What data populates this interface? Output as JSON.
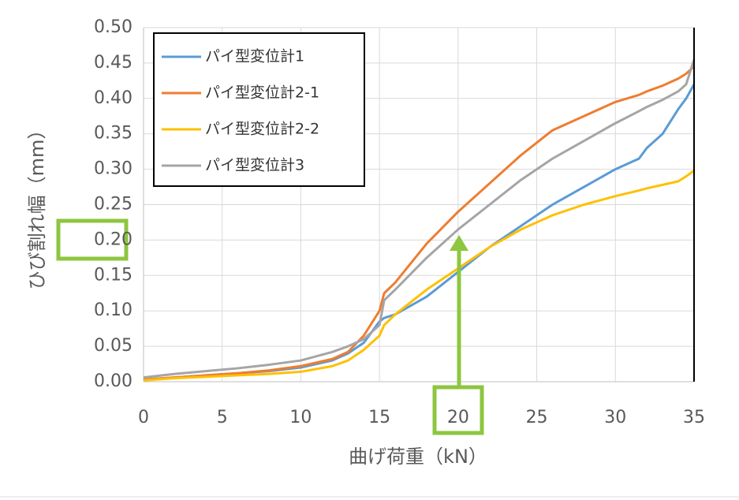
{
  "chart_data": {
    "type": "line",
    "x_label": "曲げ荷重（kN）",
    "y_label": "ひび割れ幅（mm）",
    "x": [
      0,
      2,
      4,
      6,
      8,
      10,
      12,
      13,
      14,
      15,
      15.3,
      16,
      18,
      20,
      22,
      24,
      26,
      28,
      30,
      31.5,
      32,
      33,
      34,
      34.5,
      35
    ],
    "series": [
      {
        "name": "パイ型変位計1",
        "color": "#5b9bd5",
        "values": [
          0.003,
          0.006,
          0.009,
          0.012,
          0.015,
          0.02,
          0.03,
          0.04,
          0.055,
          0.085,
          0.09,
          0.095,
          0.12,
          0.155,
          0.19,
          0.22,
          0.25,
          0.275,
          0.3,
          0.315,
          0.33,
          0.35,
          0.385,
          0.4,
          0.42
        ]
      },
      {
        "name": "パイ型変位計2-1",
        "color": "#ed7d31",
        "values": [
          0.003,
          0.006,
          0.009,
          0.012,
          0.016,
          0.022,
          0.032,
          0.042,
          0.065,
          0.1,
          0.125,
          0.14,
          0.195,
          0.24,
          0.28,
          0.32,
          0.355,
          0.375,
          0.395,
          0.405,
          0.41,
          0.418,
          0.428,
          0.435,
          0.445
        ]
      },
      {
        "name": "パイ型変位計2-2",
        "color": "#ffc000",
        "values": [
          0.002,
          0.005,
          0.007,
          0.009,
          0.011,
          0.014,
          0.022,
          0.03,
          0.045,
          0.065,
          0.08,
          0.095,
          0.13,
          0.16,
          0.19,
          0.215,
          0.235,
          0.25,
          0.262,
          0.27,
          0.273,
          0.278,
          0.283,
          0.29,
          0.298
        ]
      },
      {
        "name": "パイ型変位計3",
        "color": "#a5a5a5",
        "values": [
          0.006,
          0.011,
          0.015,
          0.019,
          0.024,
          0.03,
          0.042,
          0.05,
          0.06,
          0.08,
          0.115,
          0.13,
          0.175,
          0.215,
          0.25,
          0.285,
          0.315,
          0.34,
          0.365,
          0.382,
          0.388,
          0.398,
          0.41,
          0.42,
          0.455
        ]
      }
    ],
    "xlim": [
      0,
      35
    ],
    "xticks": [
      0,
      5,
      10,
      15,
      20,
      25,
      30,
      35
    ],
    "ylim": [
      0,
      0.5
    ],
    "yticks": [
      {
        "value": 0,
        "label": "0.00"
      },
      {
        "value": 0.05,
        "label": "0.05"
      },
      {
        "value": 0.1,
        "label": "0.10"
      },
      {
        "value": 0.15,
        "label": "0.15"
      },
      {
        "value": 0.2,
        "label": "0.20"
      },
      {
        "value": 0.25,
        "label": "0.25"
      },
      {
        "value": 0.3,
        "label": "0.30"
      },
      {
        "value": 0.35,
        "label": "0.35"
      },
      {
        "value": 0.4,
        "label": "0.40"
      },
      {
        "value": 0.45,
        "label": "0.45"
      },
      {
        "value": 0.5,
        "label": "0.50"
      }
    ],
    "grid": true,
    "legend": "upper-left"
  }
}
